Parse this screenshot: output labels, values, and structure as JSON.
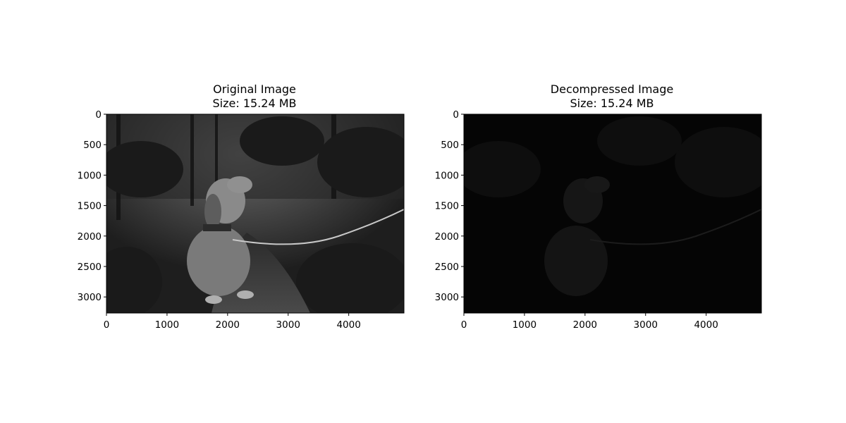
{
  "figure": {
    "background": "#ffffff"
  },
  "chart_data": [
    {
      "type": "image",
      "title": "Original Image",
      "subtitle": "Size: 15.24 MB",
      "xlabel": "",
      "ylabel": "",
      "xlim": [
        0,
        4912
      ],
      "ylim": [
        3264,
        0
      ],
      "xticks": [
        0,
        1000,
        2000,
        3000,
        4000
      ],
      "yticks": [
        0,
        500,
        1000,
        1500,
        2000,
        2500,
        3000
      ],
      "colormap": "gray",
      "brightness": "normal",
      "description_of_content": "grayscale photo of dog sitting on forest path with leash"
    },
    {
      "type": "image",
      "title": "Decompressed Image",
      "subtitle": "Size: 15.24 MB",
      "xlabel": "",
      "ylabel": "",
      "xlim": [
        0,
        4912
      ],
      "ylim": [
        3264,
        0
      ],
      "xticks": [
        0,
        1000,
        2000,
        3000,
        4000
      ],
      "yticks": [
        0,
        500,
        1000,
        1500,
        2000,
        2500,
        3000
      ],
      "colormap": "gray",
      "brightness": "very dark"
    }
  ]
}
